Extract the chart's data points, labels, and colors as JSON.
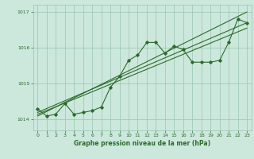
{
  "hours": [
    0,
    1,
    2,
    3,
    4,
    5,
    6,
    7,
    8,
    9,
    10,
    11,
    12,
    13,
    14,
    15,
    16,
    17,
    18,
    19,
    20,
    21,
    22,
    23
  ],
  "main_data": [
    1014.3,
    1014.1,
    1014.15,
    1014.45,
    1014.15,
    1014.2,
    1014.25,
    1014.35,
    1014.9,
    1015.2,
    1015.65,
    1015.8,
    1016.15,
    1016.15,
    1015.85,
    1016.05,
    1015.95,
    1015.6,
    1015.6,
    1015.6,
    1015.65,
    1016.15,
    1016.8,
    1016.7
  ],
  "trend1_x": [
    0,
    23
  ],
  "trend1_y": [
    1014.1,
    1017.0
  ],
  "trend2_x": [
    0,
    23
  ],
  "trend2_y": [
    1014.2,
    1016.7
  ],
  "trend3_x": [
    0,
    23
  ],
  "trend3_y": [
    1014.15,
    1016.55
  ],
  "line_color": "#2d6a2d",
  "bg_color": "#cce8dc",
  "grid_color": "#99c4b0",
  "xlabel": "Graphe pression niveau de la mer (hPa)",
  "ylim": [
    1013.7,
    1017.2
  ],
  "xlim": [
    -0.5,
    23.5
  ],
  "yticks": [
    1014,
    1015,
    1016,
    1017
  ],
  "xticks": [
    0,
    1,
    2,
    3,
    4,
    5,
    6,
    7,
    8,
    9,
    10,
    11,
    12,
    13,
    14,
    15,
    16,
    17,
    18,
    19,
    20,
    21,
    22,
    23
  ]
}
